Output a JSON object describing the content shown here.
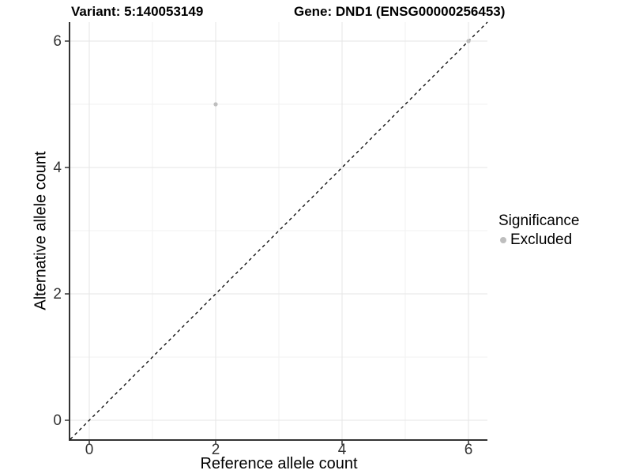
{
  "header": {
    "variant_title": "Variant: 5:140053149",
    "gene_title": "Gene: DND1 (ENSG00000256453)"
  },
  "legend": {
    "title": "Significance",
    "items": [
      {
        "label": "Excluded",
        "color": "#bebebe"
      }
    ]
  },
  "colors": {
    "grid_major": "#e6e6e6",
    "grid_minor": "#f2f2f2",
    "axis_line": "#333333",
    "tick_label": "#333333",
    "identity_line": "#000000",
    "point_default": "#bebebe",
    "background": "#ffffff"
  },
  "chart_data": {
    "type": "scatter",
    "title": "Variant: 5:140053149 — Gene: DND1 (ENSG00000256453)",
    "x": {
      "label": "Reference allele count",
      "ticks": [
        0,
        2,
        4,
        6
      ],
      "minor_ticks": [
        1,
        3,
        5
      ],
      "lim": [
        -0.3,
        6.3
      ]
    },
    "y": {
      "label": "Alternative allele count",
      "ticks": [
        0,
        2,
        4,
        6
      ],
      "minor_ticks": [
        1,
        3,
        5
      ],
      "lim": [
        -0.3,
        6.3
      ]
    },
    "points": [
      {
        "x": 2,
        "y": 5,
        "significance": "Excluded"
      },
      {
        "x": 6,
        "y": 6,
        "significance": "Excluded"
      }
    ],
    "reference_line": {
      "kind": "identity",
      "style": "dashed",
      "color": "#000000"
    },
    "grid": true,
    "legend_position": "right"
  }
}
